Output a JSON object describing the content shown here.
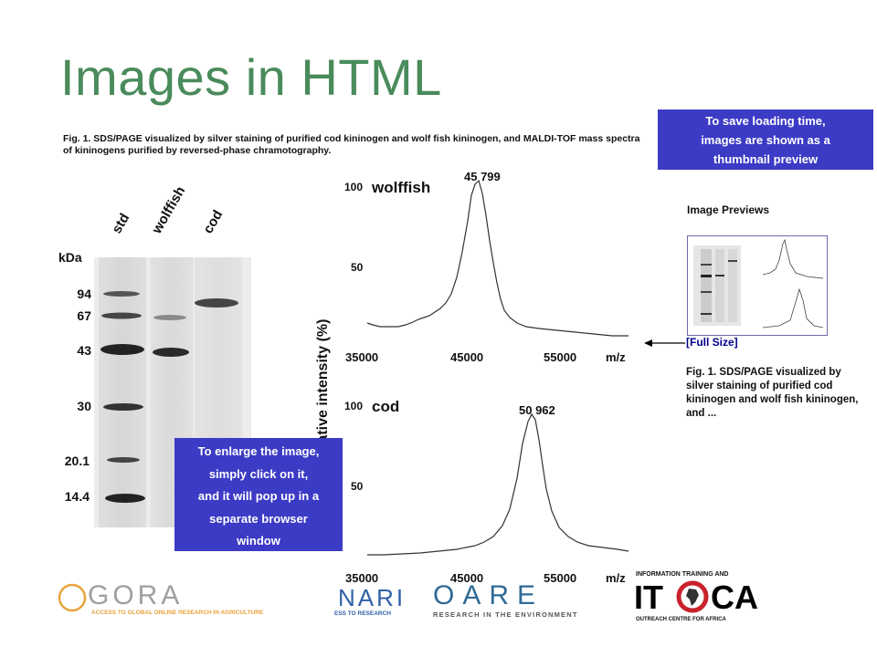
{
  "slide": {
    "title": "Images in HTML",
    "figure_caption": "Fig. 1. SDS/PAGE visualized by silver staining of purified cod kininogen and wolf fish kininogen, and MALDI-TOF mass spectra of kininogens purified by reversed-phase chramotography.",
    "callout_top": [
      "To save loading time,",
      "images are shown as a",
      "thumbnail preview"
    ],
    "callout_bottom": [
      "To enlarge the image,",
      "simply click on it,",
      "and it will pop up in a",
      "separate browser",
      "window"
    ]
  },
  "gel": {
    "lane_labels": [
      "std",
      "wolffish",
      "cod"
    ],
    "unit_label": "kDa",
    "markers": [
      "94",
      "67",
      "43",
      "30",
      "20.1",
      "14.4"
    ]
  },
  "spectra": {
    "y_axis_label": "Relative intensity (%)",
    "top": {
      "species": "wolffish",
      "peak_label": "45 799",
      "y_ticks": [
        "100",
        "50"
      ],
      "x_ticks": [
        "35000",
        "45000",
        "55000"
      ],
      "x_unit": "m/z"
    },
    "bottom": {
      "species": "cod",
      "peak_label": "50 962",
      "y_ticks": [
        "100",
        "50"
      ],
      "x_ticks": [
        "35000",
        "45000",
        "55000"
      ],
      "x_unit": "m/z"
    }
  },
  "preview": {
    "heading": "Image Previews",
    "full_size_link": "[Full Size]",
    "caption": "Fig. 1. SDS/PAGE visualized by silver staining of purified cod kininogen and wolf fish kininogen, and ..."
  },
  "logos": {
    "agora_name": "GORA",
    "agora_tagline": "ACCESS TO GLOBAL ONLINE RESEARCH IN AGRICULTURE",
    "hinari_name": "NARI",
    "hinari_tagline": "ESS TO RESEARCH",
    "oare_name": "OARE",
    "oare_tagline": "RESEARCH IN THE ENVIRONMENT",
    "itoca_top": "INFORMATION TRAINING AND",
    "itoca_name_left": "IT",
    "itoca_name_right": "CA",
    "itoca_bottom": "OUTREACH CENTRE FOR AFRICA"
  },
  "colors": {
    "title": "#4a8b5c",
    "callout": "#3c3bc5",
    "link": "#00008b"
  }
}
